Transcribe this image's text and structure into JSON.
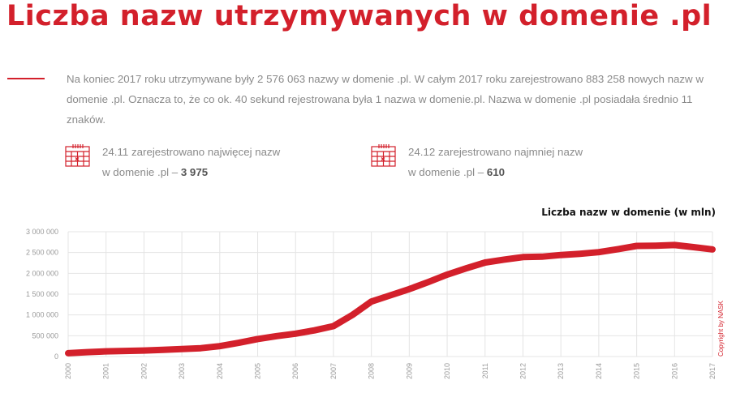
{
  "page": {
    "title": "Liczba nazw utrzymywanych w domenie .pl"
  },
  "intro": {
    "text": "Na koniec 2017 roku utrzymywane były 2 576 063 nazwy w domenie .pl. W całym 2017 roku zarejestrowano 883 258 nowych nazw w domenie .pl. Oznacza to, że co ok. 40 sekund rejestrowana była 1 nazwa w domenie.pl. Nazwa w domenie .pl posiadała średnio 11 znaków."
  },
  "stats": [
    {
      "line1": "24.11 zarejestrowano najwięcej nazw",
      "line2_prefix": "w domenie .pl –",
      "value": "3 975",
      "icon": "calendar-icon"
    },
    {
      "line1": "24.12 zarejestrowano najmniej nazw",
      "line2_prefix": "w domenie .pl –",
      "value": "610",
      "icon": "calendar-icon"
    }
  ],
  "copyright": "Copyright by NASK",
  "colors": {
    "accent": "#d3202b",
    "text": "#8a8a8a",
    "grid": "#e4e4e4"
  },
  "chart_data": {
    "type": "line",
    "title": "Liczba nazw w domenie (w mln)",
    "x": [
      2000,
      2000.5,
      2001,
      2001.5,
      2002,
      2002.5,
      2003,
      2003.5,
      2004,
      2004.5,
      2005,
      2005.5,
      2006,
      2006.5,
      2007,
      2007.5,
      2008,
      2008.5,
      2009,
      2009.5,
      2010,
      2010.5,
      2011,
      2011.5,
      2012,
      2012.5,
      2013,
      2013.5,
      2014,
      2014.5,
      2015,
      2015.5,
      2016,
      2016.5,
      2017
    ],
    "series": [
      {
        "values": [
          80000,
          105000,
          125000,
          135000,
          145000,
          160000,
          180000,
          200000,
          250000,
          330000,
          420000,
          490000,
          550000,
          630000,
          730000,
          1000000,
          1320000,
          1470000,
          1620000,
          1790000,
          1970000,
          2120000,
          2260000,
          2330000,
          2390000,
          2400000,
          2440000,
          2470000,
          2510000,
          2580000,
          2660000,
          2665000,
          2680000,
          2630000,
          2576063
        ]
      }
    ],
    "xticks": [
      "2000",
      "2001",
      "2002",
      "2003",
      "2004",
      "2005",
      "2006",
      "2007",
      "2008",
      "2009",
      "2010",
      "2011",
      "2012",
      "2013",
      "2014",
      "2015",
      "2016",
      "2017"
    ],
    "yticks": [
      0,
      500000,
      1000000,
      1500000,
      2000000,
      2500000,
      3000000
    ],
    "ytick_labels": [
      "0",
      "500 000",
      "1 000 000",
      "1 500 000",
      "2 000 000",
      "2 500 000",
      "3 000 000"
    ],
    "ylim": [
      0,
      3000000
    ],
    "xlim": [
      2000,
      2017
    ],
    "grid": true
  }
}
